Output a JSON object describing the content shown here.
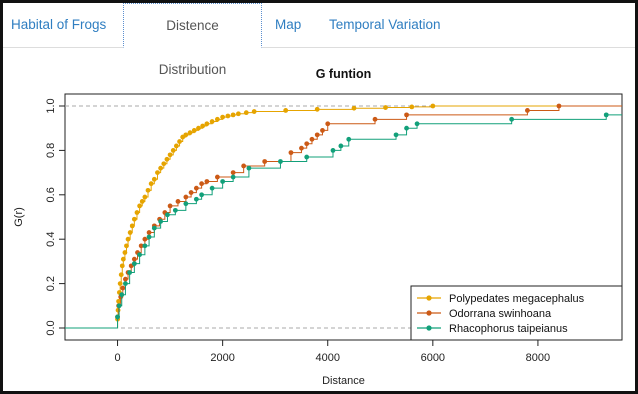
{
  "tabs": [
    {
      "label": "Habital of Frogs",
      "active": false
    },
    {
      "label": "Distence Distribution",
      "active": true
    },
    {
      "label": "Map",
      "active": false
    },
    {
      "label": "Temporal Variation",
      "active": false
    }
  ],
  "colors": {
    "tab_link": "#2f7ec1",
    "series": [
      "#e6a400",
      "#cc5a16",
      "#12a07a"
    ]
  },
  "chart_data": {
    "type": "line",
    "title": "G funtion",
    "xlabel": "Distance",
    "ylabel": "G(r)",
    "xlim": [
      -1000,
      9600
    ],
    "ylim": [
      0,
      1.0
    ],
    "x_ticks": [
      0,
      2000,
      4000,
      6000,
      8000
    ],
    "x_tick_labels": [
      "0",
      "2000",
      "4000",
      "6000",
      "8000"
    ],
    "y_ticks": [
      0.0,
      0.2,
      0.4,
      0.6,
      0.8,
      1.0
    ],
    "y_tick_labels": [
      "0.0",
      "0.2",
      "0.4",
      "0.6",
      "0.8",
      "1.0"
    ],
    "reference_lines": [
      0,
      1
    ],
    "legend_position": "bottom-right",
    "series": [
      {
        "name": "Polypedates megacephalus",
        "step": true,
        "x": [
          -1000,
          0,
          10,
          20,
          35,
          50,
          70,
          90,
          110,
          140,
          170,
          200,
          240,
          280,
          320,
          370,
          420,
          470,
          520,
          580,
          640,
          700,
          760,
          820,
          880,
          940,
          1000,
          1060,
          1120,
          1180,
          1240,
          1300,
          1380,
          1460,
          1540,
          1620,
          1700,
          1800,
          1900,
          2000,
          2100,
          2200,
          2300,
          2450,
          2600,
          3200,
          3800,
          4500,
          5100,
          5600,
          6000,
          9600
        ],
        "y": [
          0,
          0.04,
          0.08,
          0.12,
          0.16,
          0.2,
          0.24,
          0.28,
          0.31,
          0.34,
          0.37,
          0.4,
          0.43,
          0.46,
          0.49,
          0.52,
          0.55,
          0.57,
          0.59,
          0.62,
          0.65,
          0.67,
          0.7,
          0.72,
          0.74,
          0.76,
          0.78,
          0.8,
          0.82,
          0.84,
          0.86,
          0.87,
          0.88,
          0.89,
          0.9,
          0.91,
          0.92,
          0.93,
          0.94,
          0.95,
          0.955,
          0.96,
          0.965,
          0.97,
          0.975,
          0.98,
          0.985,
          0.99,
          0.993,
          0.996,
          1.0,
          1.0
        ]
      },
      {
        "name": "Odorrana swinhoana",
        "step": true,
        "x": [
          -1000,
          0,
          20,
          60,
          100,
          150,
          200,
          260,
          320,
          380,
          450,
          520,
          600,
          700,
          800,
          900,
          1000,
          1150,
          1300,
          1400,
          1500,
          1600,
          1700,
          1900,
          2200,
          2400,
          2800,
          3300,
          3500,
          3600,
          3700,
          3800,
          3900,
          4000,
          4900,
          5500,
          7800,
          8400,
          9600
        ],
        "y": [
          0,
          0.05,
          0.1,
          0.14,
          0.18,
          0.22,
          0.25,
          0.28,
          0.31,
          0.34,
          0.37,
          0.4,
          0.43,
          0.46,
          0.49,
          0.52,
          0.55,
          0.57,
          0.59,
          0.61,
          0.63,
          0.65,
          0.66,
          0.68,
          0.7,
          0.73,
          0.75,
          0.79,
          0.81,
          0.83,
          0.85,
          0.87,
          0.89,
          0.92,
          0.94,
          0.96,
          0.98,
          1.0,
          1.0
        ]
      },
      {
        "name": "Rhacophorus taipeianus",
        "step": true,
        "x": [
          -1000,
          0,
          30,
          80,
          150,
          230,
          320,
          420,
          520,
          600,
          700,
          820,
          950,
          1100,
          1300,
          1500,
          1600,
          1800,
          2000,
          2200,
          2500,
          3100,
          3600,
          4100,
          4250,
          4400,
          5300,
          5500,
          5700,
          7500,
          9300,
          9600
        ],
        "y": [
          0,
          0.05,
          0.1,
          0.15,
          0.2,
          0.25,
          0.29,
          0.33,
          0.37,
          0.41,
          0.45,
          0.48,
          0.51,
          0.53,
          0.56,
          0.58,
          0.6,
          0.63,
          0.66,
          0.68,
          0.72,
          0.75,
          0.77,
          0.8,
          0.82,
          0.85,
          0.87,
          0.9,
          0.92,
          0.94,
          0.96,
          0.96
        ]
      }
    ]
  }
}
